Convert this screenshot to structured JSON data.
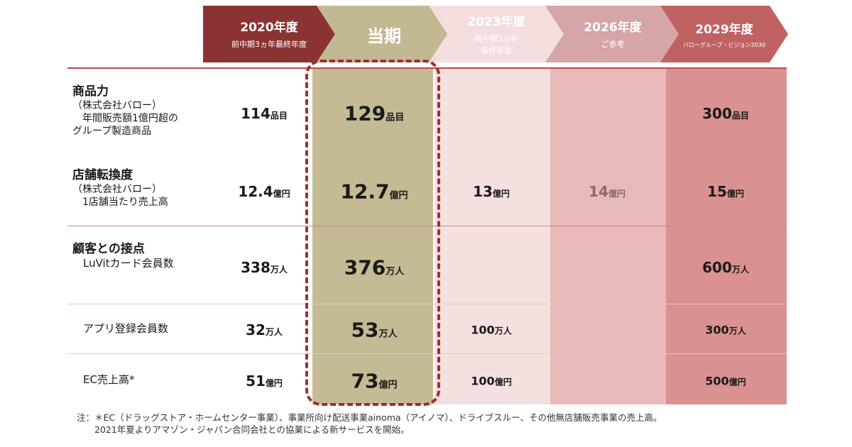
{
  "headers": [
    {
      "title": "2020年度",
      "sub": "前中期3ヵ年最終年度",
      "color": "#8b3333"
    },
    {
      "title": "当期",
      "sub": "",
      "color": "#c2b993"
    },
    {
      "title": "2023年度",
      "sub": "現中期3ヵ年\n最終年度",
      "color": "#f3dddd"
    },
    {
      "title": "2026年度",
      "sub": "ご参考",
      "color": "#d6a5a7"
    },
    {
      "title": "2029年度",
      "sub": "バローグループ・ビジョン2030",
      "color": "#c06262"
    }
  ],
  "column_colors": [
    "#ffffff",
    "#c4bb94",
    "#f5e0e0",
    "#e9b8b9",
    "#da9191"
  ],
  "rows": [
    {
      "title": "商品力",
      "desc": [
        "（株式会社バロー）",
        "　年間販売額1億円超の",
        "グループ製造商品"
      ],
      "values": [
        {
          "n": "114",
          "u": "品目"
        },
        {
          "n": "129",
          "u": "品目"
        },
        {
          "n": "",
          "u": ""
        },
        {
          "n": "",
          "u": ""
        },
        {
          "n": "300",
          "u": "品目"
        }
      ]
    },
    {
      "title": "店舗転換度",
      "desc": [
        "（株式会社バロー）",
        "　1店舗当たり売上高"
      ],
      "values": [
        {
          "n": "12.4",
          "u": "億円"
        },
        {
          "n": "12.7",
          "u": "億円"
        },
        {
          "n": "13",
          "u": "億円"
        },
        {
          "n": "14",
          "u": "億円"
        },
        {
          "n": "15",
          "u": "億円"
        }
      ]
    },
    {
      "title": "顧客との接点",
      "desc": [
        "　LuVitカード会員数"
      ],
      "values": [
        {
          "n": "338",
          "u": "万人"
        },
        {
          "n": "376",
          "u": "万人"
        },
        {
          "n": "",
          "u": ""
        },
        {
          "n": "",
          "u": ""
        },
        {
          "n": "600",
          "u": "万人"
        }
      ]
    },
    {
      "title": "",
      "desc": [
        "　アプリ登録会員数"
      ],
      "values": [
        {
          "n": "32",
          "u": "万人"
        },
        {
          "n": "53",
          "u": "万人"
        },
        {
          "n": "100",
          "u": "万人"
        },
        {
          "n": "",
          "u": ""
        },
        {
          "n": "300",
          "u": "万人"
        }
      ]
    },
    {
      "title": "",
      "desc": [
        "　EC売上高*"
      ],
      "values": [
        {
          "n": "51",
          "u": "億円"
        },
        {
          "n": "73",
          "u": "億円"
        },
        {
          "n": "100",
          "u": "億円"
        },
        {
          "n": "",
          "u": ""
        },
        {
          "n": "500",
          "u": "億円"
        }
      ]
    }
  ],
  "note": [
    "注：＊EC（ドラッグストア・ホームセンター事業）、事業所向け配送事業ainoma（アイノマ）、ドライブスルー、その他無店舗販売事業の売上高。",
    "　　2021年夏よりアマゾン・ジャパン合同会社との協業による新サービスを開始。"
  ]
}
